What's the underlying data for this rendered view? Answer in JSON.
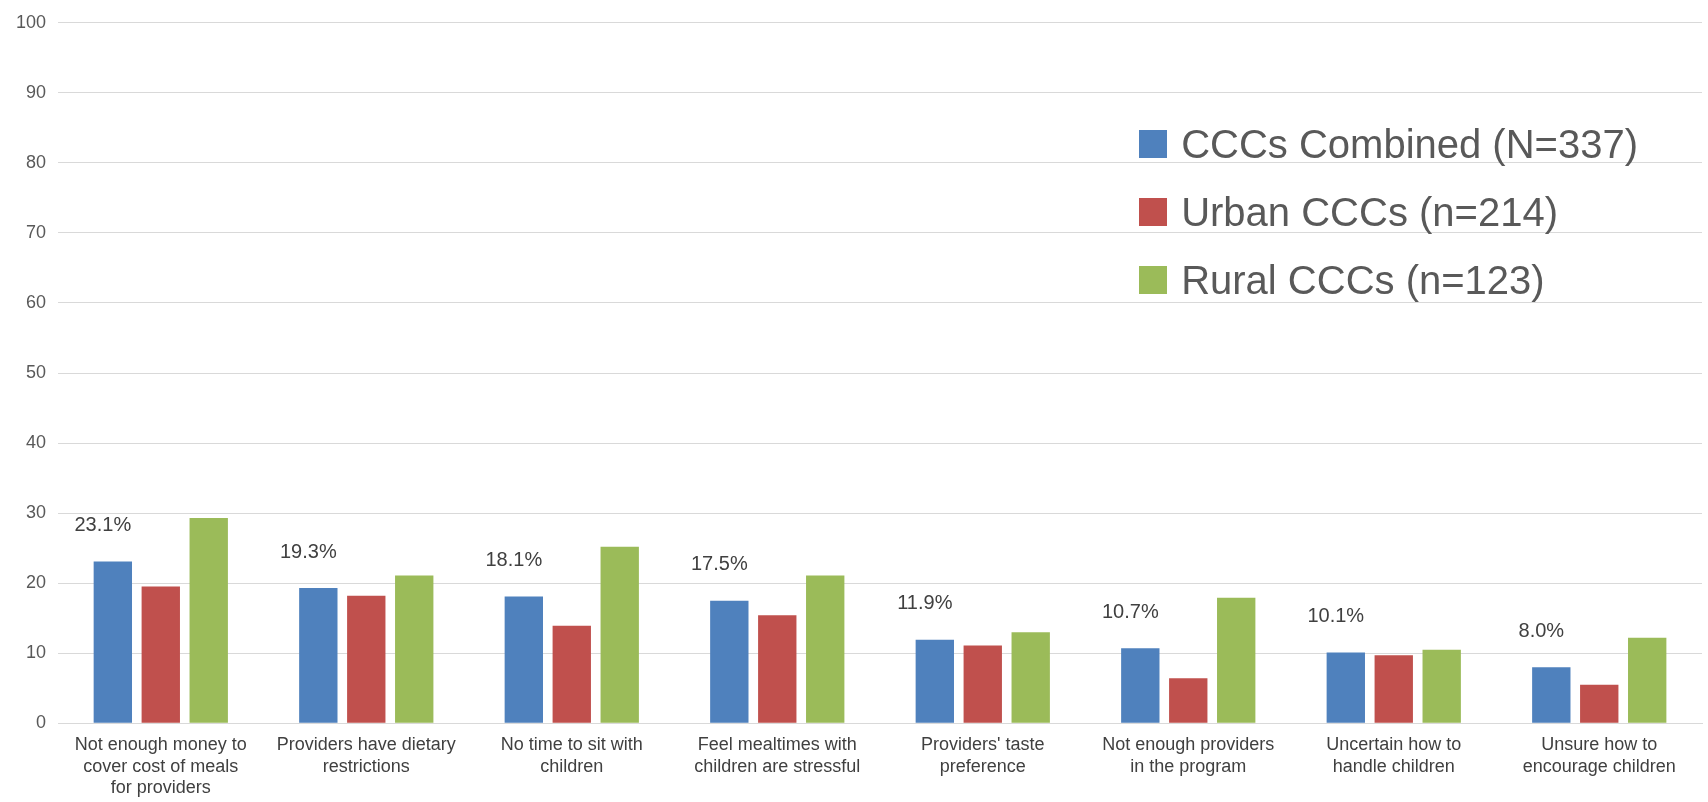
{
  "chart_data": {
    "type": "bar",
    "categories": [
      "Not enough money to cover cost of meals for providers",
      "Providers have dietary restrictions",
      "No time to sit with children",
      "Feel mealtimes with children are stressful",
      "Providers' taste preference",
      "Not enough providers in the program",
      "Uncertain how to handle children",
      "Unsure how to encourage children"
    ],
    "series": [
      {
        "name": "CCCs Combined (N=337)",
        "color": "#4f81bd",
        "values": [
          23.1,
          19.3,
          18.1,
          17.5,
          11.9,
          10.7,
          10.1,
          8.0
        ],
        "value_labels": [
          "23.1%",
          "19.3%",
          "18.1%",
          "17.5%",
          "11.9%",
          "10.7%",
          "10.1%",
          "8.0%"
        ]
      },
      {
        "name": "Urban CCCs (n=214)",
        "color": "#c0504d",
        "values": [
          19.5,
          18.2,
          13.9,
          15.4,
          11.1,
          6.4,
          9.7,
          5.5
        ]
      },
      {
        "name": "Rural CCCs (n=123)",
        "color": "#9bbb59",
        "values": [
          29.3,
          21.1,
          25.2,
          21.1,
          13.0,
          17.9,
          10.5,
          12.2
        ]
      }
    ],
    "ylim": [
      0,
      100
    ],
    "yticks": [
      0,
      10,
      20,
      30,
      40,
      50,
      60,
      70,
      80,
      90,
      100
    ],
    "grid": "y",
    "legend": "top right"
  }
}
